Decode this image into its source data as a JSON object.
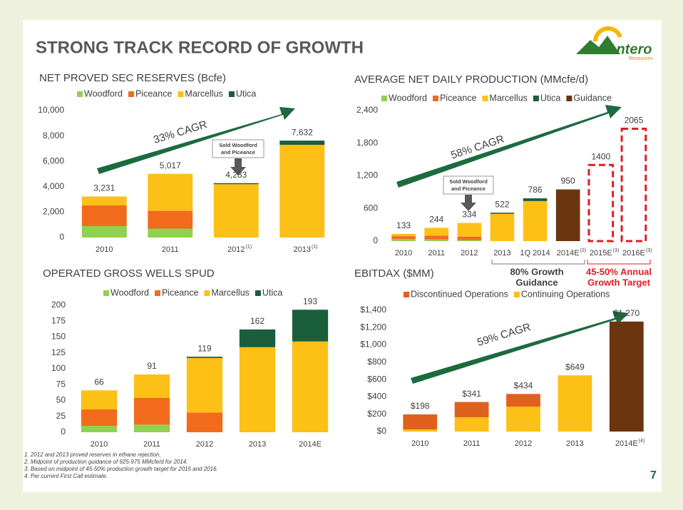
{
  "title": "STRONG TRACK RECORD OF GROWTH",
  "logo": {
    "name": "Antero",
    "sub": "Resources"
  },
  "page_number": "7",
  "footnotes": [
    "1.  2012 and 2013 proved reserves in ethane rejection.",
    "2.  Midpoint of production guidance of 925-975 MMcfe/d for 2014.",
    "3.  Based on midpoint of 45-50% production growth target for 2015 and 2016.",
    "4.  Per current First Call estimate."
  ],
  "chart_data": [
    {
      "type": "bar",
      "title": "NET PROVED SEC RESERVES (Bcfe)",
      "categories": [
        "2010",
        "2011",
        "2012",
        "2013"
      ],
      "category_superscripts": [
        null,
        null,
        "(1)",
        "(1)"
      ],
      "series": [
        {
          "name": "Woodford",
          "color": "#92d050",
          "values": [
            900,
            700,
            0,
            0
          ]
        },
        {
          "name": "Piceance",
          "color": "#f26b1d",
          "values": [
            1630,
            1400,
            0,
            0
          ]
        },
        {
          "name": "Marcellus",
          "color": "#fdc016",
          "values": [
            701,
            2917,
            4200,
            7300
          ]
        },
        {
          "name": "Utica",
          "color": "#1b5e3b",
          "values": [
            0,
            0,
            83,
            332
          ]
        }
      ],
      "totals": [
        3231,
        5017,
        4283,
        7632
      ],
      "total_labels": [
        "3,231",
        "5,017",
        "4,283",
        "7,632"
      ],
      "ylim": [
        0,
        10000
      ],
      "yticks": [
        0,
        {
          "value": 2000,
          "label": "2,000"
        },
        {
          "value": 4000,
          "label": "4,000"
        },
        {
          "value": 6000,
          "label": "6,000"
        },
        {
          "value": 8000,
          "label": "8,000"
        },
        {
          "value": 10000,
          "label": "10,000"
        }
      ],
      "annotations": {
        "cagr": "33% CAGR",
        "note": [
          "Sold Woodford",
          "and Piceance"
        ]
      }
    },
    {
      "type": "bar",
      "title": "AVERAGE NET DAILY PRODUCTION (MMcfe/d)",
      "categories": [
        "2010",
        "2011",
        "2012",
        "2013",
        "1Q 2014",
        "2014E",
        "2015E",
        "2016E"
      ],
      "category_superscripts": [
        null,
        null,
        null,
        null,
        null,
        "(2)",
        "(3)",
        "(3)"
      ],
      "series": [
        {
          "name": "Woodford",
          "color": "#92d050",
          "values": [
            40,
            30,
            20,
            0,
            0,
            null,
            null,
            null
          ]
        },
        {
          "name": "Piceance",
          "color": "#f26b1d",
          "values": [
            50,
            70,
            60,
            0,
            0,
            null,
            null,
            null
          ]
        },
        {
          "name": "Marcellus",
          "color": "#fdc016",
          "values": [
            43,
            144,
            254,
            502,
            736,
            null,
            null,
            null
          ]
        },
        {
          "name": "Utica",
          "color": "#1b5e3b",
          "values": [
            0,
            0,
            0,
            20,
            50,
            null,
            null,
            null
          ]
        },
        {
          "name": "Guidance",
          "color": "#6b3510",
          "values": [
            null,
            null,
            null,
            null,
            null,
            950,
            null,
            null
          ]
        }
      ],
      "totals": [
        133,
        244,
        334,
        522,
        786,
        950,
        1400,
        2065
      ],
      "outline_only": [
        false,
        false,
        false,
        false,
        false,
        false,
        true,
        true
      ],
      "outline_color": "#e31b23",
      "ylim": [
        0,
        2400
      ],
      "yticks": [
        0,
        600,
        {
          "value": 1200,
          "label": "1,200"
        },
        {
          "value": 1800,
          "label": "1,800"
        },
        {
          "value": 2400,
          "label": "2,400"
        }
      ],
      "annotations": {
        "cagr": "58% CAGR",
        "note": [
          "Sold Woodford",
          "and Piceance"
        ],
        "guidance": [
          "80% Growth",
          "Guidance"
        ],
        "target": [
          "45-50% Annual",
          "Growth Target"
        ]
      }
    },
    {
      "type": "bar",
      "title": "OPERATED GROSS WELLS SPUD",
      "categories": [
        "2010",
        "2011",
        "2012",
        "2013",
        "2014E"
      ],
      "series": [
        {
          "name": "Woodford",
          "color": "#92d050",
          "values": [
            10,
            12,
            0,
            0,
            0
          ]
        },
        {
          "name": "Piceance",
          "color": "#f26b1d",
          "values": [
            26,
            42,
            31,
            0,
            0
          ]
        },
        {
          "name": "Marcellus",
          "color": "#fdc016",
          "values": [
            30,
            37,
            86,
            134,
            143
          ]
        },
        {
          "name": "Utica",
          "color": "#1b5e3b",
          "values": [
            0,
            0,
            2,
            28,
            50
          ]
        }
      ],
      "totals": [
        66,
        91,
        119,
        162,
        193
      ],
      "ylim": [
        0,
        200
      ],
      "yticks": [
        0,
        25,
        50,
        75,
        100,
        125,
        150,
        175,
        200
      ]
    },
    {
      "type": "bar",
      "title": "EBITDAX ($MM)",
      "categories": [
        "2010",
        "2011",
        "2012",
        "2013",
        "2014E"
      ],
      "category_superscripts": [
        null,
        null,
        null,
        null,
        "(4)"
      ],
      "series": [
        {
          "name": "Discontinued Operations",
          "color": "#e0601e",
          "values": [
            173,
            176,
            146,
            0,
            null
          ]
        },
        {
          "name": "Continuing Operations",
          "color": "#fdc016",
          "values": [
            25,
            165,
            288,
            649,
            null
          ]
        },
        {
          "color": "#6b3510",
          "values": [
            null,
            null,
            null,
            null,
            1270
          ]
        }
      ],
      "stack_order": [
        1,
        0,
        2
      ],
      "totals": [
        198,
        341,
        434,
        649,
        1270
      ],
      "total_labels": [
        "$198",
        "$341",
        "$434",
        "$649",
        "$1,270"
      ],
      "ylim": [
        0,
        1400
      ],
      "yticks": [
        {
          "value": 0,
          "label": "$0"
        },
        {
          "value": 200,
          "label": "$200"
        },
        {
          "value": 400,
          "label": "$400"
        },
        {
          "value": 600,
          "label": "$600"
        },
        {
          "value": 800,
          "label": "$800"
        },
        {
          "value": 1000,
          "label": "$1,000"
        },
        {
          "value": 1200,
          "label": "$1,200"
        },
        {
          "value": 1400,
          "label": "$1,400"
        }
      ],
      "annotations": {
        "cagr": "59% CAGR"
      }
    }
  ]
}
